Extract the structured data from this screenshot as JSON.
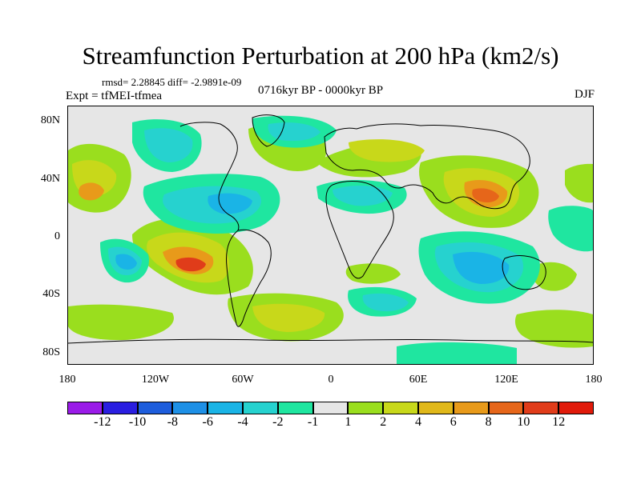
{
  "title": "Streamfunction Perturbation at 200 hPa (km2/s)",
  "stats_line": "rmsd= 2.28845 diff= -2.9891e-09",
  "experiment": "Expt = tfMEI-tfmea",
  "period": "0716kyr BP - 0000kyr BP",
  "season": "DJF",
  "lat_ticks": [
    "80N",
    "40N",
    "0",
    "40S",
    "80S"
  ],
  "lon_ticks": [
    "180",
    "120W",
    "60W",
    "0",
    "60E",
    "120E",
    "180"
  ],
  "colorbar": {
    "labels": [
      "-12",
      "-10",
      "-8",
      "-6",
      "-4",
      "-2",
      "-1",
      "1",
      "2",
      "4",
      "6",
      "8",
      "10",
      "12"
    ],
    "colors": [
      "#9a1be8",
      "#2a1ee0",
      "#1e5ddc",
      "#1e90e6",
      "#1ab4e6",
      "#26d2cf",
      "#1fe6a0",
      "#e6e6e6",
      "#9ade1e",
      "#c8d81a",
      "#e0b81a",
      "#e89a1a",
      "#e6661a",
      "#e03c1a",
      "#e01a0a"
    ]
  },
  "map": {
    "background_color": "#e6e6e6",
    "coastline_color": "#000000"
  }
}
